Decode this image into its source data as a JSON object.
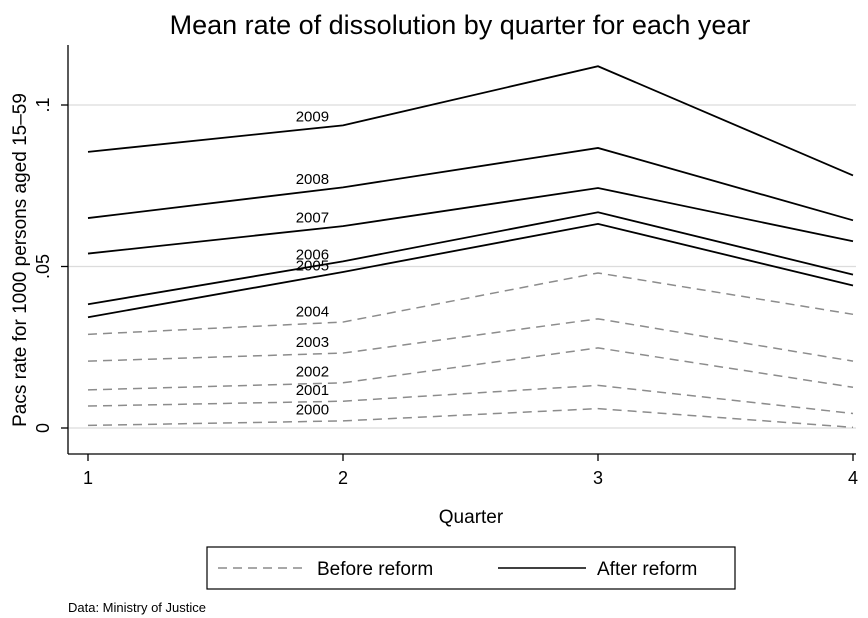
{
  "chart_data": {
    "type": "line",
    "title": "Mean rate of dissolution by quarter for each year",
    "xlabel": "Quarter",
    "ylabel": "Pacs rate for 1000 persons aged 15–59",
    "x": [
      1,
      2,
      3,
      4
    ],
    "xlim": [
      1,
      4
    ],
    "ylim": [
      0,
      0.115
    ],
    "x_ticks": [
      {
        "value": 1,
        "label": "1"
      },
      {
        "value": 2,
        "label": "2"
      },
      {
        "value": 3,
        "label": "3"
      },
      {
        "value": 4,
        "label": "4"
      }
    ],
    "y_ticks": [
      {
        "value": 0,
        "label": "0"
      },
      {
        "value": 0.05,
        "label": ".05"
      },
      {
        "value": 0.1,
        "label": ".1"
      }
    ],
    "grid": true,
    "legend_position": "bottom",
    "legend": [
      {
        "label": "Before reform",
        "style": "dashed",
        "color": "#8c8c8c"
      },
      {
        "label": "After reform",
        "style": "solid",
        "color": "#000000"
      }
    ],
    "series": [
      {
        "name": "2000",
        "group": "Before reform",
        "values": [
          0.0008,
          0.0022,
          0.006,
          0.0002
        ]
      },
      {
        "name": "2001",
        "group": "Before reform",
        "values": [
          0.0068,
          0.0083,
          0.0132,
          0.0045
        ]
      },
      {
        "name": "2002",
        "group": "Before reform",
        "values": [
          0.0118,
          0.014,
          0.0248,
          0.0126
        ]
      },
      {
        "name": "2003",
        "group": "Before reform",
        "values": [
          0.0207,
          0.0232,
          0.0338,
          0.0207
        ]
      },
      {
        "name": "2004",
        "group": "Before reform",
        "values": [
          0.029,
          0.0328,
          0.048,
          0.0352
        ]
      },
      {
        "name": "2005",
        "group": "After reform",
        "values": [
          0.0343,
          0.0483,
          0.0632,
          0.0441
        ]
      },
      {
        "name": "2006",
        "group": "After reform",
        "values": [
          0.0383,
          0.0516,
          0.0668,
          0.0475
        ]
      },
      {
        "name": "2007",
        "group": "After reform",
        "values": [
          0.054,
          0.0625,
          0.0743,
          0.0578
        ]
      },
      {
        "name": "2008",
        "group": "After reform",
        "values": [
          0.065,
          0.0745,
          0.0867,
          0.0643
        ]
      },
      {
        "name": "2009",
        "group": "After reform",
        "values": [
          0.0855,
          0.0937,
          0.112,
          0.0782
        ]
      }
    ],
    "note": "Data: Ministry of Justice"
  }
}
